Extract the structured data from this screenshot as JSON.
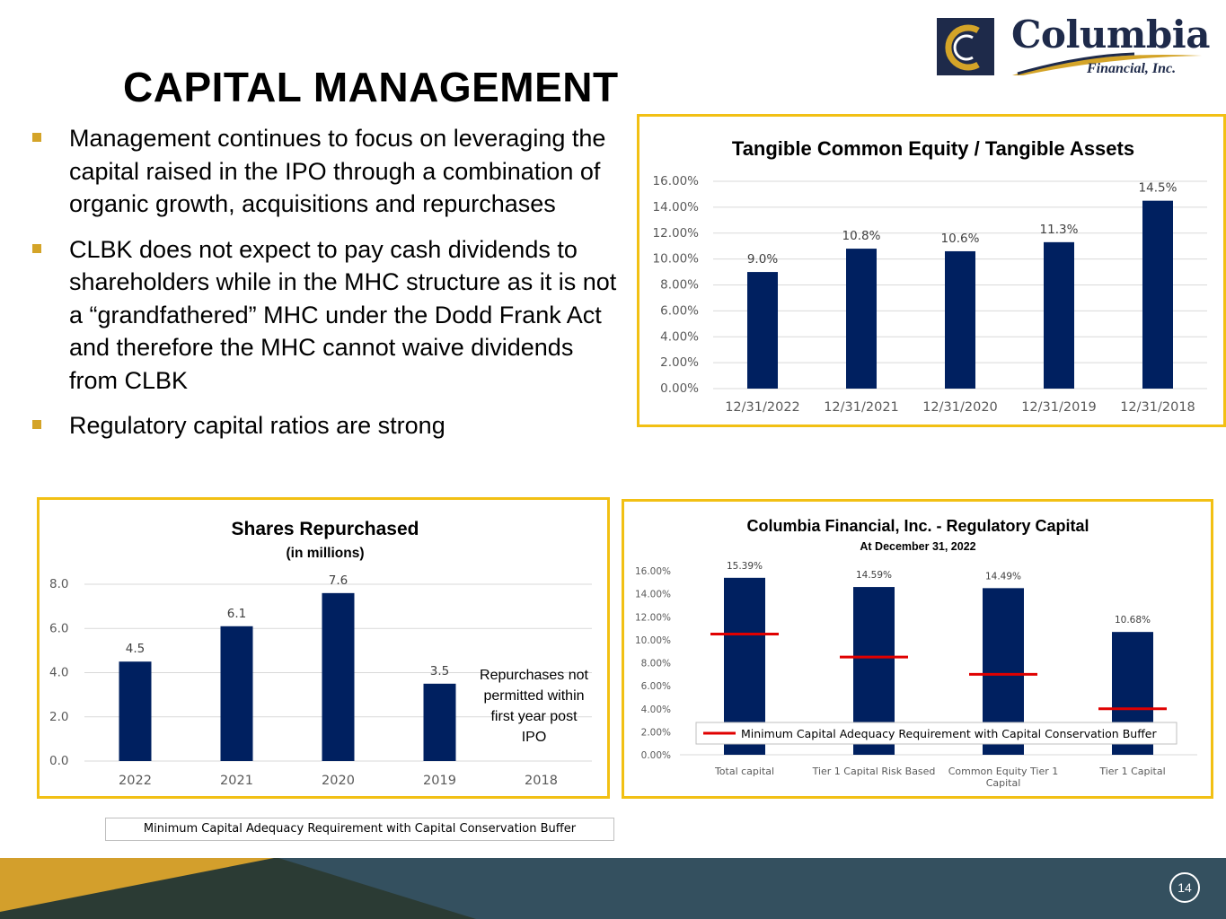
{
  "header": {
    "title": "CAPITAL MANAGEMENT"
  },
  "logo": {
    "name": "Columbia",
    "subtitle": "Financial, Inc.",
    "icon": "columbia-c-logo",
    "colors": {
      "navy": "#1e2a4a",
      "gold": "#d4a428"
    }
  },
  "bullets": [
    "Management continues to focus on leveraging the capital raised in the IPO through a combination of organic growth, acquisitions and repurchases",
    "CLBK does not expect to pay cash dividends to shareholders while in the MHC structure as it is not a “grandfathered” MHC under the Dodd Frank Act and therefore the MHC cannot waive dividends from CLBK",
    "Regulatory capital ratios are strong"
  ],
  "legend_box_label": "Minimum Capital Adequacy Requirement with Capital Conservation Buffer",
  "shares_note": "Repurchases not permitted within first year post IPO",
  "footer": {
    "page_number": "14"
  },
  "chart_data": [
    {
      "id": "tce",
      "type": "bar",
      "title": "Tangible Common Equity / Tangible Assets",
      "categories": [
        "12/31/2022",
        "12/31/2021",
        "12/31/2020",
        "12/31/2019",
        "12/31/2018"
      ],
      "values": [
        9.0,
        10.8,
        10.6,
        11.3,
        14.5
      ],
      "data_labels": [
        "9.0%",
        "10.8%",
        "10.6%",
        "11.3%",
        "14.5%"
      ],
      "ylim": [
        0,
        16
      ],
      "yticks": [
        0,
        2,
        4,
        6,
        8,
        10,
        12,
        14,
        16
      ],
      "ytick_labels": [
        "0.00%",
        "2.00%",
        "4.00%",
        "6.00%",
        "8.00%",
        "10.00%",
        "12.00%",
        "14.00%",
        "16.00%"
      ],
      "grid": true,
      "bar_color": "#002060"
    },
    {
      "id": "shares",
      "type": "bar",
      "title": "Shares Repurchased",
      "subtitle": "(in millions)",
      "categories": [
        "2022",
        "2021",
        "2020",
        "2019",
        "2018"
      ],
      "values": [
        4.5,
        6.1,
        7.6,
        3.5,
        null
      ],
      "data_labels": [
        "4.5",
        "6.1",
        "7.6",
        "3.5",
        ""
      ],
      "ylim": [
        0,
        8
      ],
      "yticks": [
        0,
        2,
        4,
        6,
        8
      ],
      "ytick_labels": [
        "0.0",
        "2.0",
        "4.0",
        "6.0",
        "8.0"
      ],
      "grid": true,
      "bar_color": "#002060"
    },
    {
      "id": "regcap",
      "type": "bar",
      "title": "Columbia Financial, Inc. - Regulatory Capital",
      "subtitle": "At December 31, 2022",
      "categories": [
        "Total capital",
        "Tier 1 Capital Risk Based",
        "Common Equity Tier 1 Capital",
        "Tier 1 Capital"
      ],
      "category_lines": [
        [
          "Total capital"
        ],
        [
          "Tier 1 Capital Risk Based"
        ],
        [
          "Common Equity Tier 1",
          "Capital"
        ],
        [
          "Tier 1 Capital"
        ]
      ],
      "values": [
        15.39,
        14.59,
        14.49,
        10.68
      ],
      "data_labels": [
        "15.39%",
        "14.59%",
        "14.49%",
        "10.68%"
      ],
      "minimum_requirement": {
        "name": "Minimum Capital Adequacy Requirement with Capital Conservation Buffer",
        "values": [
          10.5,
          8.5,
          7.0,
          4.0
        ],
        "color": "#e00000"
      },
      "ylim": [
        0,
        16
      ],
      "yticks": [
        0,
        2,
        4,
        6,
        8,
        10,
        12,
        14,
        16
      ],
      "ytick_labels": [
        "0.00%",
        "2.00%",
        "4.00%",
        "6.00%",
        "8.00%",
        "10.00%",
        "12.00%",
        "14.00%",
        "16.00%"
      ],
      "legend_placement": "bottom",
      "grid": false,
      "bar_color": "#002060"
    }
  ]
}
